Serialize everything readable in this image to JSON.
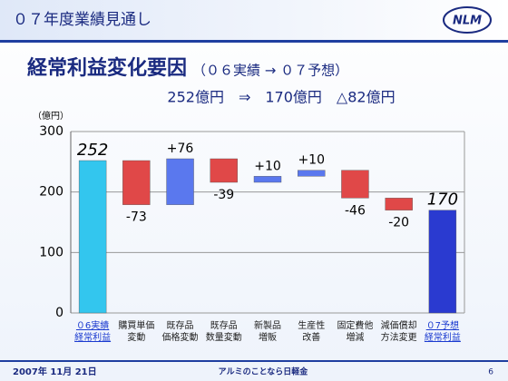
{
  "header": {
    "title": "０７年度業績見通し",
    "logo": "NLM"
  },
  "chart_data": {
    "type": "waterfall",
    "title": "経常利益変化要因",
    "subtitle": "（０６実績 → ０７予想）",
    "annotation": "252億円　⇒　170億円　△82億円",
    "y_label": "（億円）",
    "categories": [
      "０6実績\n経常利益",
      "購買単価\n変動",
      "既存品\n価格変動",
      "既存品\n数量変動",
      "新製品\n増販",
      "生産性\n改善",
      "固定費他\n増減",
      "減価償却\n方法変更",
      "０7予想\n経常利益"
    ],
    "values": [
      252,
      -73,
      76,
      -39,
      10,
      10,
      -46,
      -20,
      170
    ],
    "value_labels": [
      "252",
      "-73",
      "+76",
      "-39",
      "+10",
      "+10",
      "-46",
      "-20",
      "170"
    ],
    "colors": [
      "#33c6ee",
      "#e04848",
      "#5a78ee",
      "#e04848",
      "#5a78ee",
      "#5a78ee",
      "#e04848",
      "#e04848",
      "#2a3ad0"
    ],
    "ylim": [
      0,
      300
    ],
    "yticks": [
      0,
      100,
      200,
      300
    ],
    "grid": true
  },
  "footer": {
    "date": "2007年 11月 21日",
    "slogan": "アルミのことなら日軽金",
    "page": "6"
  }
}
